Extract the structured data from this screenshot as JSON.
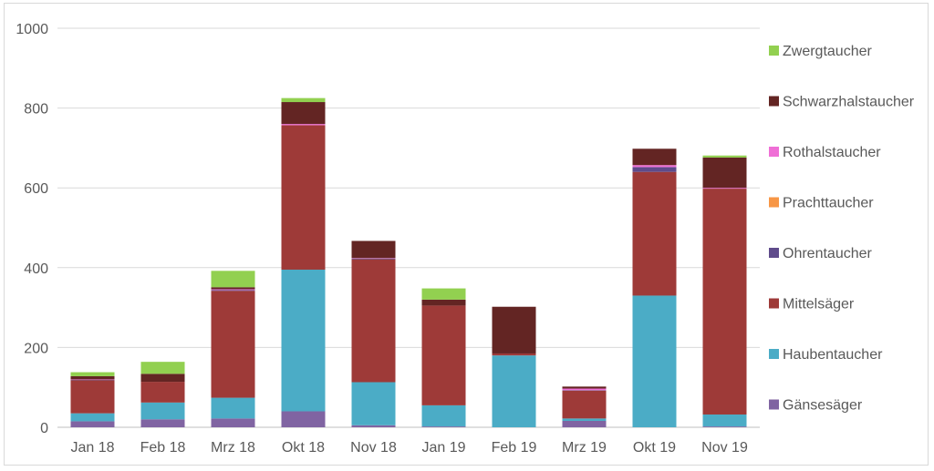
{
  "chart_data": {
    "type": "bar",
    "stacked": true,
    "title": "",
    "xlabel": "",
    "ylabel": "",
    "ylim": [
      0,
      1000
    ],
    "yticks": [
      0,
      200,
      400,
      600,
      800,
      1000
    ],
    "grid": true,
    "legend_position": "right",
    "categories": [
      "Jan 18",
      "Feb 18",
      "Mrz 18",
      "Okt 18",
      "Nov 18",
      "Jan 19",
      "Feb 19",
      "Mrz 19",
      "Okt 19",
      "Nov 19"
    ],
    "series": [
      {
        "name": "Gänsesäger",
        "color": "#8064a2",
        "values": [
          15,
          20,
          22,
          40,
          5,
          2,
          0,
          16,
          0,
          2
        ]
      },
      {
        "name": "Haubentaucher",
        "color": "#4bacc6",
        "values": [
          20,
          42,
          52,
          355,
          108,
          53,
          180,
          6,
          330,
          30
        ]
      },
      {
        "name": "Mittelsäger",
        "color": "#9e3a38",
        "values": [
          83,
          52,
          268,
          362,
          308,
          250,
          5,
          70,
          310,
          566
        ]
      },
      {
        "name": "Ohrentaucher",
        "color": "#5f4b8b",
        "values": [
          1,
          0,
          2,
          0,
          2,
          0,
          0,
          1,
          12,
          0
        ]
      },
      {
        "name": "Prachttaucher",
        "color": "#f79646",
        "values": [
          0,
          0,
          0,
          0,
          0,
          0,
          0,
          0,
          0,
          0
        ]
      },
      {
        "name": "Rothalstaucher",
        "color": "#ef6fd6",
        "values": [
          1,
          0,
          2,
          3,
          1,
          0,
          0,
          4,
          5,
          2
        ]
      },
      {
        "name": "Schwarzhalstaucher",
        "color": "#632523",
        "values": [
          8,
          20,
          5,
          55,
          43,
          15,
          117,
          5,
          41,
          76
        ]
      },
      {
        "name": "Zwergtaucher",
        "color": "#92d050",
        "values": [
          10,
          30,
          41,
          10,
          0,
          28,
          0,
          0,
          0,
          5
        ]
      }
    ]
  }
}
